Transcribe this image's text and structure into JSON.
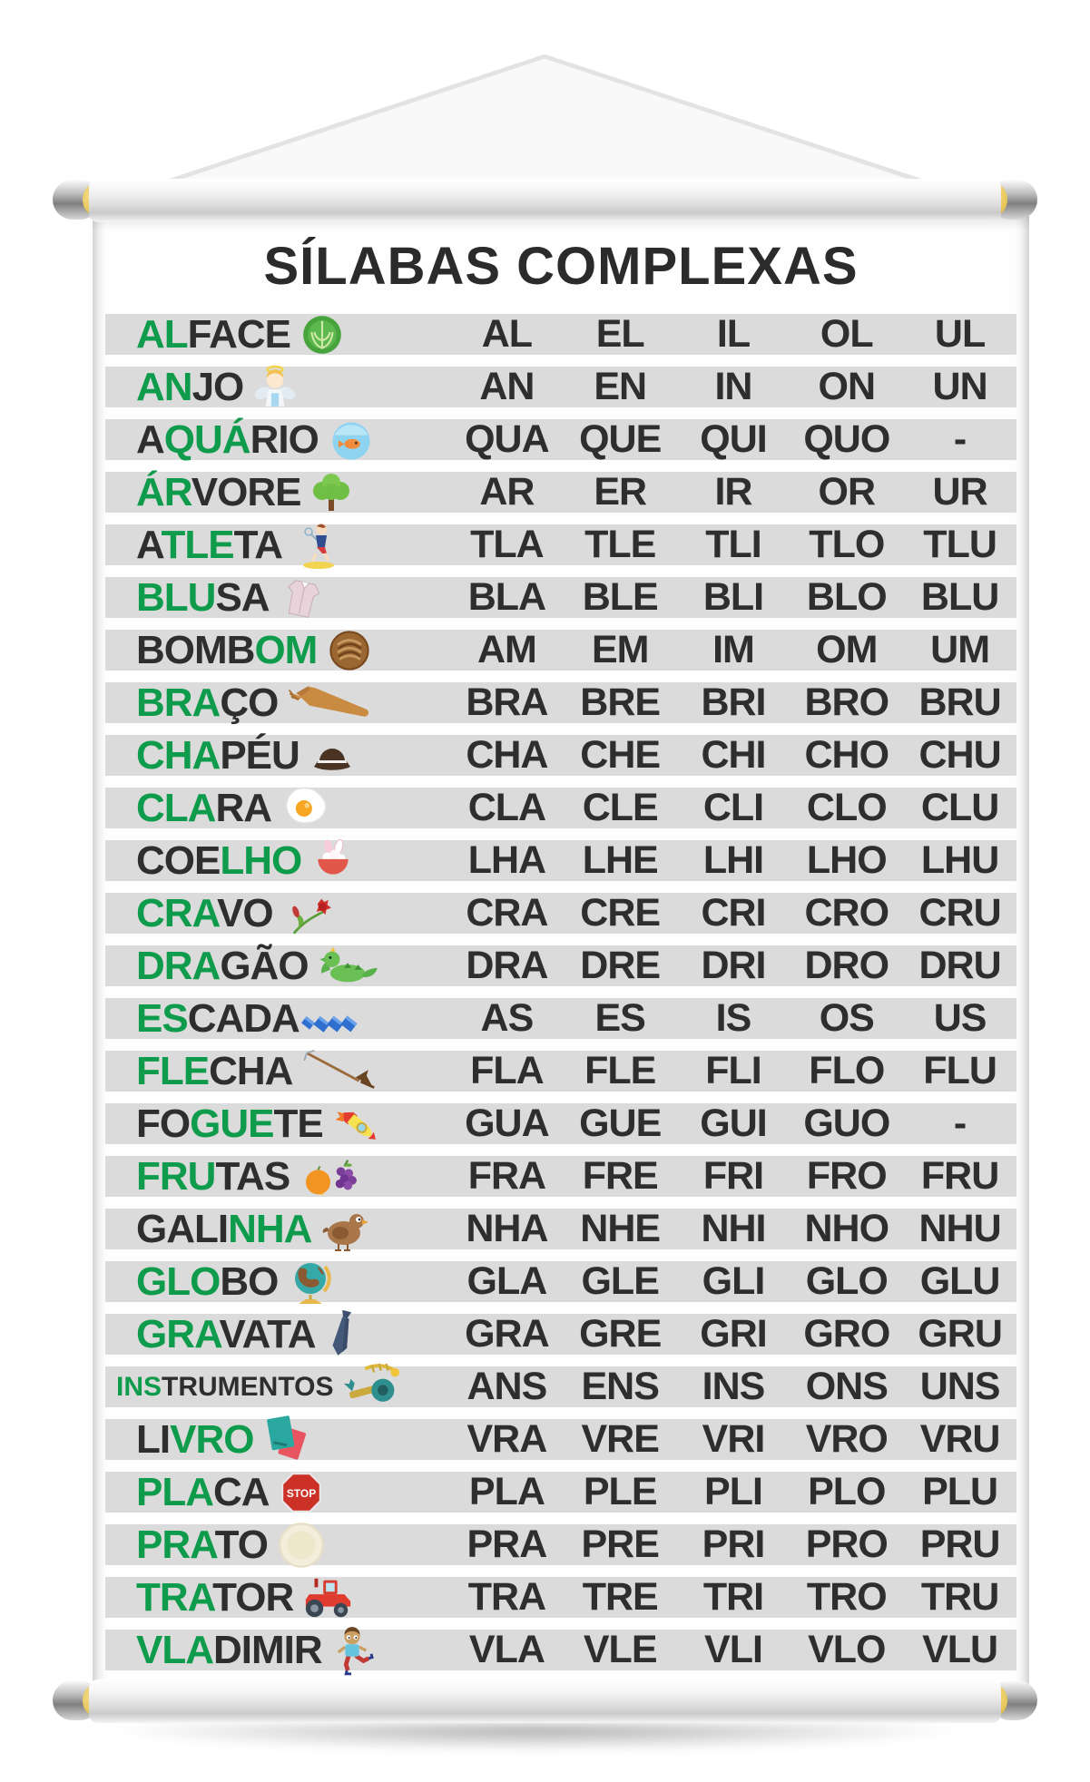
{
  "title": "SÍLABAS COMPLEXAS",
  "stop_sign_label": "STOP",
  "colors": {
    "highlight_green": "#0f9b4c",
    "text_dark": "#2e2e2e",
    "row_stripe": "#dbdbdb",
    "rod_gold": "#e9c85e"
  },
  "rows": [
    {
      "word": "ALFACE",
      "parts": [
        {
          "text": "AL",
          "highlight": true
        },
        {
          "text": "FACE",
          "highlight": false
        }
      ],
      "icon": "lettuce-icon",
      "syllables": [
        "AL",
        "EL",
        "IL",
        "OL",
        "UL"
      ]
    },
    {
      "word": "ANJO",
      "parts": [
        {
          "text": "AN",
          "highlight": true
        },
        {
          "text": "JO",
          "highlight": false
        }
      ],
      "icon": "angel-icon",
      "syllables": [
        "AN",
        "EN",
        "IN",
        "ON",
        "UN"
      ]
    },
    {
      "word": "AQUÁRIO",
      "parts": [
        {
          "text": "A",
          "highlight": false
        },
        {
          "text": "QUÁ",
          "highlight": true
        },
        {
          "text": "RIO",
          "highlight": false
        }
      ],
      "icon": "aquarium-icon",
      "syllables": [
        "QUA",
        "QUE",
        "QUI",
        "QUO",
        "-"
      ]
    },
    {
      "word": "ÁRVORE",
      "parts": [
        {
          "text": "ÁR",
          "highlight": true
        },
        {
          "text": "VORE",
          "highlight": false
        }
      ],
      "icon": "tree-icon",
      "syllables": [
        "AR",
        "ER",
        "IR",
        "OR",
        "UR"
      ]
    },
    {
      "word": "ATLETA",
      "parts": [
        {
          "text": "A",
          "highlight": false
        },
        {
          "text": "TLE",
          "highlight": true
        },
        {
          "text": "TA",
          "highlight": false
        }
      ],
      "icon": "athlete-icon",
      "syllables": [
        "TLA",
        "TLE",
        "TLI",
        "TLO",
        "TLU"
      ]
    },
    {
      "word": "BLUSA",
      "parts": [
        {
          "text": "BLU",
          "highlight": true
        },
        {
          "text": "SA",
          "highlight": false
        }
      ],
      "icon": "blouse-icon",
      "syllables": [
        "BLA",
        "BLE",
        "BLI",
        "BLO",
        "BLU"
      ]
    },
    {
      "word": "BOMBOM",
      "parts": [
        {
          "text": "BOMB",
          "highlight": false
        },
        {
          "text": "OM",
          "highlight": true
        }
      ],
      "icon": "bonbon-icon",
      "syllables": [
        "AM",
        "EM",
        "IM",
        "OM",
        "UM"
      ]
    },
    {
      "word": "BRAÇO",
      "parts": [
        {
          "text": "BRA",
          "highlight": true
        },
        {
          "text": "ÇO",
          "highlight": false
        }
      ],
      "icon": "arm-icon",
      "syllables": [
        "BRA",
        "BRE",
        "BRI",
        "BRO",
        "BRU"
      ]
    },
    {
      "word": "CHAPÉU",
      "parts": [
        {
          "text": "CHA",
          "highlight": true
        },
        {
          "text": "PÉU",
          "highlight": false
        }
      ],
      "icon": "hat-icon",
      "syllables": [
        "CHA",
        "CHE",
        "CHI",
        "CHO",
        "CHU"
      ]
    },
    {
      "word": "CLARA",
      "parts": [
        {
          "text": "CLA",
          "highlight": true
        },
        {
          "text": "RA",
          "highlight": false
        }
      ],
      "icon": "fried-egg-icon",
      "syllables": [
        "CLA",
        "CLE",
        "CLI",
        "CLO",
        "CLU"
      ]
    },
    {
      "word": "COELHO",
      "parts": [
        {
          "text": "COE",
          "highlight": false
        },
        {
          "text": "LHO",
          "highlight": true
        }
      ],
      "icon": "rabbit-icon",
      "syllables": [
        "LHA",
        "LHE",
        "LHI",
        "LHO",
        "LHU"
      ]
    },
    {
      "word": "CRAVO",
      "parts": [
        {
          "text": "CRA",
          "highlight": true
        },
        {
          "text": "VO",
          "highlight": false
        }
      ],
      "icon": "carnation-icon",
      "syllables": [
        "CRA",
        "CRE",
        "CRI",
        "CRO",
        "CRU"
      ]
    },
    {
      "word": "DRAGÃO",
      "parts": [
        {
          "text": "DRA",
          "highlight": true
        },
        {
          "text": "GÃO",
          "highlight": false
        }
      ],
      "icon": "dragon-icon",
      "syllables": [
        "DRA",
        "DRE",
        "DRI",
        "DRO",
        "DRU"
      ]
    },
    {
      "word": "ESCADA",
      "parts": [
        {
          "text": "ES",
          "highlight": true
        },
        {
          "text": "CADA",
          "highlight": false
        }
      ],
      "icon": "stairs-icon",
      "syllables": [
        "AS",
        "ES",
        "IS",
        "OS",
        "US"
      ]
    },
    {
      "word": "FLECHA",
      "parts": [
        {
          "text": "FLE",
          "highlight": true
        },
        {
          "text": "CHA",
          "highlight": false
        }
      ],
      "icon": "arrow-icon",
      "syllables": [
        "FLA",
        "FLE",
        "FLI",
        "FLO",
        "FLU"
      ]
    },
    {
      "word": "FOGUETE",
      "parts": [
        {
          "text": "FO",
          "highlight": false
        },
        {
          "text": "GUE",
          "highlight": true
        },
        {
          "text": "TE",
          "highlight": false
        }
      ],
      "icon": "rocket-icon",
      "syllables": [
        "GUA",
        "GUE",
        "GUI",
        "GUO",
        "-"
      ]
    },
    {
      "word": "FRUTAS",
      "parts": [
        {
          "text": "FRU",
          "highlight": true
        },
        {
          "text": "TAS",
          "highlight": false
        }
      ],
      "icon": "fruits-icon",
      "syllables": [
        "FRA",
        "FRE",
        "FRI",
        "FRO",
        "FRU"
      ]
    },
    {
      "word": "GALINHA",
      "parts": [
        {
          "text": "GALI",
          "highlight": false
        },
        {
          "text": "NHA",
          "highlight": true
        }
      ],
      "icon": "hen-icon",
      "syllables": [
        "NHA",
        "NHE",
        "NHI",
        "NHO",
        "NHU"
      ]
    },
    {
      "word": "GLOBO",
      "parts": [
        {
          "text": "GLO",
          "highlight": true
        },
        {
          "text": "BO",
          "highlight": false
        }
      ],
      "icon": "globe-icon",
      "syllables": [
        "GLA",
        "GLE",
        "GLI",
        "GLO",
        "GLU"
      ]
    },
    {
      "word": "GRAVATA",
      "parts": [
        {
          "text": "GRA",
          "highlight": true
        },
        {
          "text": "VATA",
          "highlight": false
        }
      ],
      "icon": "tie-icon",
      "syllables": [
        "GRA",
        "GRE",
        "GRI",
        "GRO",
        "GRU"
      ]
    },
    {
      "word": "INSTRUMENTOS",
      "small": true,
      "parts": [
        {
          "text": "INS",
          "highlight": true
        },
        {
          "text": "TRUMENTOS",
          "highlight": false
        }
      ],
      "icon": "instruments-icon",
      "syllables": [
        "ANS",
        "ENS",
        "INS",
        "ONS",
        "UNS"
      ]
    },
    {
      "word": "LIVRO",
      "parts": [
        {
          "text": "LI",
          "highlight": false
        },
        {
          "text": "VRO",
          "highlight": true
        }
      ],
      "icon": "book-icon",
      "syllables": [
        "VRA",
        "VRE",
        "VRI",
        "VRO",
        "VRU"
      ]
    },
    {
      "word": "PLACA",
      "parts": [
        {
          "text": "PLA",
          "highlight": true
        },
        {
          "text": "CA",
          "highlight": false
        }
      ],
      "icon": "stop-sign-icon",
      "syllables": [
        "PLA",
        "PLE",
        "PLI",
        "PLO",
        "PLU"
      ]
    },
    {
      "word": "PRATO",
      "parts": [
        {
          "text": "PRA",
          "highlight": true
        },
        {
          "text": "TO",
          "highlight": false
        }
      ],
      "icon": "plate-icon",
      "syllables": [
        "PRA",
        "PRE",
        "PRI",
        "PRO",
        "PRU"
      ]
    },
    {
      "word": "TRATOR",
      "parts": [
        {
          "text": "TRA",
          "highlight": true
        },
        {
          "text": "TOR",
          "highlight": false
        }
      ],
      "icon": "tractor-icon",
      "syllables": [
        "TRA",
        "TRE",
        "TRI",
        "TRO",
        "TRU"
      ]
    },
    {
      "word": "VLADIMIR",
      "parts": [
        {
          "text": "VLA",
          "highlight": true
        },
        {
          "text": "DIMIR",
          "highlight": false
        }
      ],
      "icon": "boy-icon",
      "syllables": [
        "VLA",
        "VLE",
        "VLI",
        "VLO",
        "VLU"
      ]
    }
  ]
}
